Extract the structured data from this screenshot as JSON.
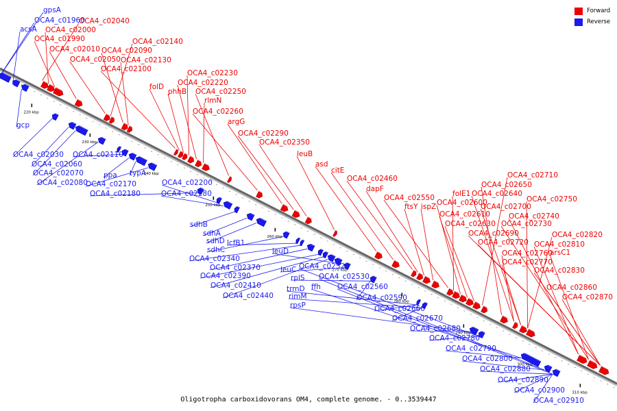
{
  "caption": "Oligotropha carboxidovorans OM4, complete genome. - 0..3539447",
  "legend": [
    {
      "label": "Forward",
      "color": "#ee0000"
    },
    {
      "label": "Reverse",
      "color": "#1a1aee"
    }
  ],
  "colors": {
    "forward": "#ee0000",
    "reverse": "#1a1aee",
    "backbone": "#666666"
  },
  "ticks": [
    "220 kbp",
    "230 kbp",
    "240 kbp",
    "250 kbp",
    "260 kbp",
    "270 kbp",
    "280 kbp",
    "290 kbp",
    "300 kbp",
    "310 kbp"
  ],
  "forward_genes": [
    "OCA4_c02040",
    "OCA4_c02000",
    "OCA4_c01990",
    "OCA4_c02010",
    "OCA4_c02050",
    "OCA4_c02140",
    "OCA4_c02090",
    "OCA4_c02130",
    "OCA4_c02100",
    "folD",
    "phhB",
    "OCA4_c02230",
    "OCA4_c02220",
    "rlmN",
    "OCA4_c02250",
    "OCA4_c02260",
    "argG",
    "OCA4_c02290",
    "OCA4_c02350",
    "leuB",
    "asd",
    "citE",
    "OCA4_c02460",
    "dapF",
    "ftsY",
    "ispZ",
    "OCA4_c02550",
    "folE1",
    "OCA4_c02600",
    "OCA4_c02610",
    "OCA4_c02630",
    "OCA4_c02710",
    "OCA4_c02650",
    "OCA4_c02640",
    "OCA4_c02700",
    "OCA4_c02750",
    "OCA4_c02740",
    "OCA4_c02730",
    "OCA4_c02690",
    "OCA4_c02720",
    "OCA4_c02760",
    "OCA4_c02770",
    "OCA4_c02820",
    "OCA4_c02810",
    "arsC1",
    "OCA4_c02830",
    "OCA4_c02860",
    "OCA4_c02870"
  ],
  "reverse_genes": [
    "gpsA",
    "OCA4_c01960",
    "acsA",
    "gcp",
    "OCA4_c02030",
    "OCA4_c02060",
    "OCA4_c02070",
    "OCA4_c02080",
    "OCA4_c02110",
    "ppa",
    "typA",
    "OCA4_c02170",
    "OCA4_c02180",
    "OCA4_c02200",
    "OCA4_c02280",
    "sdhB",
    "sdhA",
    "sdhD",
    "sdhC",
    "lcfB1",
    "OCA4_c02340",
    "OCA4_c02370",
    "OCA4_c02390",
    "OCA4_c02410",
    "OCA4_c02440",
    "leuD",
    "leuC",
    "rplS",
    "trmD",
    "rimM",
    "rpsP",
    "OCA4_c02520",
    "ffh",
    "OCA4_c02530",
    "OCA4_c02560",
    "OCA4_c02590",
    "OCA4_c02660",
    "OCA4_c02670",
    "OCA4_c02680",
    "OCA4_c02780",
    "OCA4_c02790",
    "OCA4_c02800",
    "OCA4_c02880",
    "OCA4_c02890",
    "OCA4_c02900",
    "OCA4_c02910"
  ]
}
